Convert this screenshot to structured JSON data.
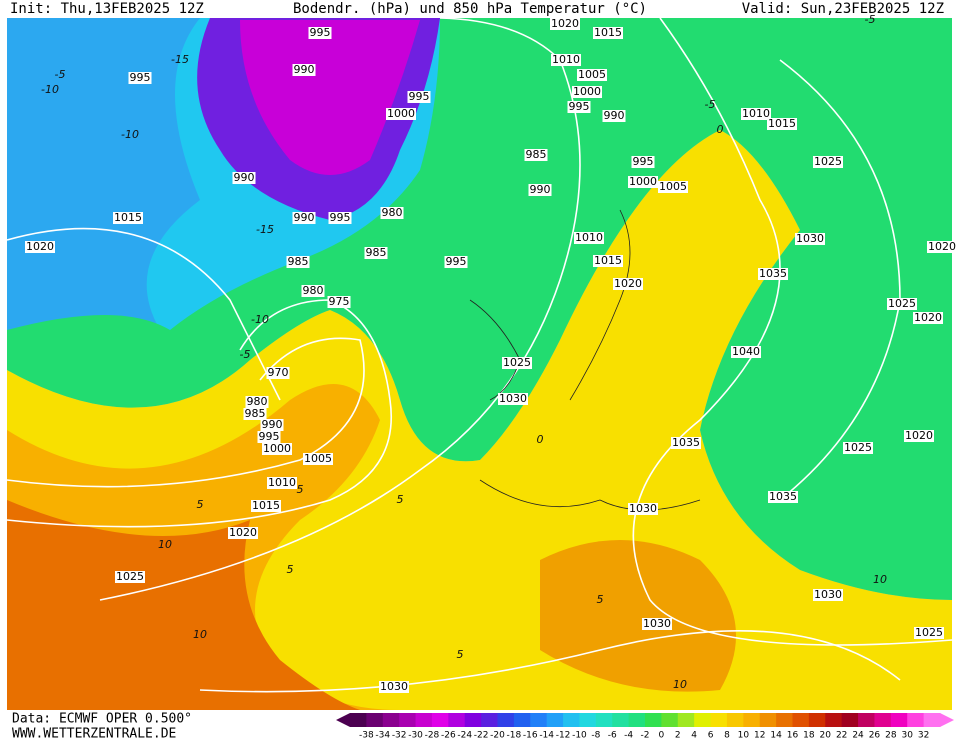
{
  "header": {
    "init": "Init: Thu,13FEB2025 12Z",
    "title": "Bodendr. (hPa) und 850 hPa Temperatur (°C)",
    "valid": "Valid: Sun,23FEB2025 12Z"
  },
  "isobar_labels": [
    "995",
    "990",
    "995",
    "1020",
    "1015",
    "1010",
    "1005",
    "1000",
    "995",
    "990",
    "995",
    "1000",
    "985",
    "995",
    "1000",
    "1005",
    "1010",
    "1015",
    "1025",
    "990",
    "990",
    "1015",
    "990",
    "995",
    "980",
    "1020",
    "985",
    "985",
    "995",
    "1010",
    "1015",
    "1020",
    "1030",
    "1035",
    "1020",
    "980",
    "975",
    "1025",
    "1020",
    "1040",
    "970",
    "1025",
    "1030",
    "980",
    "985",
    "990",
    "995",
    "1000",
    "1005",
    "1035",
    "1025",
    "1020",
    "1010",
    "1015",
    "1035",
    "1030",
    "1020",
    "1025",
    "1030",
    "1030",
    "1025",
    "1030"
  ],
  "temperature_labels": [
    "-10",
    "-15",
    "-5",
    "5",
    "-10",
    "-15",
    "-5",
    "0",
    "-10",
    "5",
    "-5",
    "0",
    "5",
    "10",
    "5",
    "10",
    "5",
    "-5",
    "5",
    "10",
    "10"
  ],
  "colorbar": {
    "ticks": [
      "-38",
      "-34",
      "-32",
      "-30",
      "-28",
      "-26",
      "-24",
      "-22",
      "-20",
      "-18",
      "-16",
      "-14",
      "-12",
      "-10",
      "-8",
      "-6",
      "-4",
      "-2",
      "0",
      "2",
      "4",
      "6",
      "8",
      "10",
      "12",
      "14",
      "16",
      "18",
      "20",
      "22",
      "24",
      "26",
      "28",
      "30",
      "32"
    ]
  },
  "footer": {
    "source": "Data: ECMWF OPER 0.500°",
    "website": "WWW.WETTERZENTRALE.DE"
  }
}
